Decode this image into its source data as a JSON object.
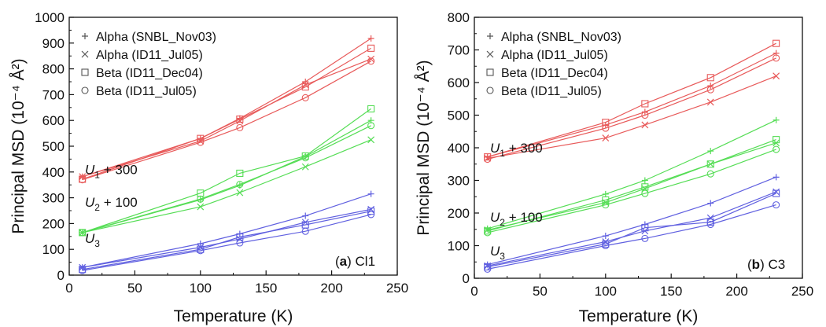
{
  "chart_data": [
    {
      "type": "line",
      "panel_tag": "a",
      "panel_name": "Cl1",
      "xlabel": "Temperature (K)",
      "ylabel": "Principal MSD (10⁻⁴ Å²)",
      "xlim": [
        0,
        250
      ],
      "ylim": [
        0,
        1000
      ],
      "xticks": [
        0,
        50,
        100,
        150,
        200,
        250
      ],
      "yticks": [
        0,
        100,
        200,
        300,
        400,
        500,
        600,
        700,
        800,
        900,
        1000
      ],
      "legend_position": "top-left",
      "legend": [
        {
          "label": "Alpha (SNBL_Nov03)",
          "marker": "plus"
        },
        {
          "label": "Alpha (ID11_Jul05)",
          "marker": "cross"
        },
        {
          "label": "Beta (ID11_Dec04)",
          "marker": "square"
        },
        {
          "label": "Beta (ID11_Jul05)",
          "marker": "circle"
        }
      ],
      "groups": [
        {
          "base": "U",
          "sub": "1",
          "suffix": " + 300",
          "color": "#e85a5a",
          "label_anchor": [
            12,
            392
          ],
          "series": [
            {
              "marker": "plus",
              "x": [
                10,
                100,
                130,
                180,
                230
              ],
              "y": [
                382,
                530,
                608,
                750,
                918
              ]
            },
            {
              "marker": "cross",
              "x": [
                10,
                100,
                130,
                180,
                230
              ],
              "y": [
                382,
                520,
                598,
                738,
                838
              ]
            },
            {
              "marker": "square",
              "x": [
                10,
                100,
                130,
                180,
                230
              ],
              "y": [
                372,
                530,
                605,
                730,
                880
              ]
            },
            {
              "marker": "circle",
              "x": [
                10,
                100,
                130,
                180,
                230
              ],
              "y": [
                370,
                515,
                572,
                688,
                830
              ]
            }
          ]
        },
        {
          "base": "U",
          "sub": "2",
          "suffix": " + 100",
          "color": "#55dd55",
          "label_anchor": [
            12,
            265
          ],
          "series": [
            {
              "marker": "plus",
              "x": [
                10,
                100,
                130,
                180,
                230
              ],
              "y": [
                165,
                292,
                348,
                460,
                600
              ]
            },
            {
              "marker": "cross",
              "x": [
                10,
                100,
                130,
                180,
                230
              ],
              "y": [
                165,
                265,
                320,
                420,
                525
              ]
            },
            {
              "marker": "square",
              "x": [
                10,
                100,
                130,
                180,
                230
              ],
              "y": [
                165,
                318,
                395,
                462,
                645
              ]
            },
            {
              "marker": "circle",
              "x": [
                10,
                100,
                130,
                180,
                230
              ],
              "y": [
                165,
                295,
                352,
                455,
                580
              ]
            }
          ]
        },
        {
          "base": "U",
          "sub": "3",
          "suffix": "",
          "color": "#6060e0",
          "label_anchor": [
            12,
            125
          ],
          "series": [
            {
              "marker": "plus",
              "x": [
                10,
                100,
                130,
                180,
                230
              ],
              "y": [
                30,
                122,
                160,
                230,
                315
              ]
            },
            {
              "marker": "cross",
              "x": [
                10,
                100,
                130,
                180,
                230
              ],
              "y": [
                30,
                108,
                140,
                205,
                255
              ]
            },
            {
              "marker": "square",
              "x": [
                10,
                100,
                130,
                180,
                230
              ],
              "y": [
                22,
                100,
                148,
                195,
                248
              ]
            },
            {
              "marker": "circle",
              "x": [
                10,
                100,
                130,
                180,
                230
              ],
              "y": [
                18,
                95,
                125,
                170,
                235
              ]
            }
          ]
        }
      ]
    },
    {
      "type": "line",
      "panel_tag": "b",
      "panel_name": "C3",
      "xlabel": "Temperature (K)",
      "ylabel": "Principal MSD (10⁻⁴ Å²)",
      "xlim": [
        0,
        250
      ],
      "ylim": [
        0,
        800
      ],
      "xticks": [
        0,
        50,
        100,
        150,
        200,
        250
      ],
      "yticks": [
        0,
        100,
        200,
        300,
        400,
        500,
        600,
        700,
        800
      ],
      "legend_position": "top-left",
      "legend": [
        {
          "label": "Alpha (SNBL_Nov03)",
          "marker": "plus"
        },
        {
          "label": "Alpha (ID11_Jul05)",
          "marker": "cross"
        },
        {
          "label": "Beta (ID11_Dec04)",
          "marker": "square"
        },
        {
          "label": "Beta (ID11_Jul05)",
          "marker": "circle"
        }
      ],
      "groups": [
        {
          "base": "U",
          "sub": "1",
          "suffix": " + 300",
          "color": "#e85a5a",
          "label_anchor": [
            12,
            385
          ],
          "series": [
            {
              "marker": "plus",
              "x": [
                10,
                100,
                130,
                180,
                230
              ],
              "y": [
                372,
                470,
                510,
                590,
                690
              ]
            },
            {
              "marker": "cross",
              "x": [
                10,
                100,
                130,
                180,
                230
              ],
              "y": [
                368,
                430,
                470,
                540,
                620
              ]
            },
            {
              "marker": "square",
              "x": [
                10,
                100,
                130,
                180,
                230
              ],
              "y": [
                372,
                478,
                535,
                615,
                720
              ]
            },
            {
              "marker": "circle",
              "x": [
                10,
                100,
                130,
                180,
                230
              ],
              "y": [
                365,
                460,
                500,
                578,
                675
              ]
            }
          ]
        },
        {
          "base": "U",
          "sub": "2",
          "suffix": " + 100",
          "color": "#55dd55",
          "label_anchor": [
            12,
            174
          ],
          "series": [
            {
              "marker": "plus",
              "x": [
                10,
                100,
                130,
                180,
                230
              ],
              "y": [
                152,
                258,
                300,
                390,
                485
              ]
            },
            {
              "marker": "cross",
              "x": [
                10,
                100,
                130,
                180,
                230
              ],
              "y": [
                148,
                232,
                275,
                350,
                415
              ]
            },
            {
              "marker": "square",
              "x": [
                10,
                100,
                130,
                180,
                230
              ],
              "y": [
                145,
                240,
                280,
                350,
                425
              ]
            },
            {
              "marker": "circle",
              "x": [
                10,
                100,
                130,
                180,
                230
              ],
              "y": [
                140,
                225,
                260,
                320,
                395
              ]
            }
          ]
        },
        {
          "base": "U",
          "sub": "3",
          "suffix": "",
          "color": "#6060e0",
          "label_anchor": [
            12,
            70
          ],
          "series": [
            {
              "marker": "plus",
              "x": [
                10,
                100,
                130,
                180,
                230
              ],
              "y": [
                42,
                130,
                165,
                230,
                310
              ]
            },
            {
              "marker": "cross",
              "x": [
                10,
                100,
                130,
                180,
                230
              ],
              "y": [
                38,
                112,
                145,
                185,
                265
              ]
            },
            {
              "marker": "square",
              "x": [
                10,
                100,
                130,
                180,
                230
              ],
              "y": [
                35,
                105,
                155,
                172,
                260
              ]
            },
            {
              "marker": "circle",
              "x": [
                10,
                100,
                130,
                180,
                230
              ],
              "y": [
                28,
                100,
                122,
                165,
                225
              ]
            }
          ]
        }
      ]
    }
  ]
}
